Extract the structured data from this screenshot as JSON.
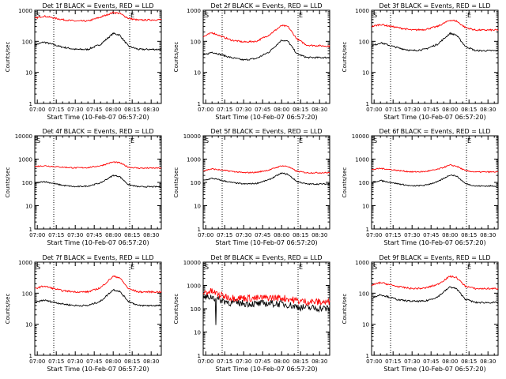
{
  "x_tick_labels": [
    "07:00",
    "07:15",
    "07:30",
    "07:45",
    "08:00",
    "08:15",
    "08:30"
  ],
  "y_tick_labels": [
    "1",
    "10",
    "100",
    "1000"
  ],
  "y_tick_labels_4dec": [
    "1",
    "10",
    "100",
    "1000",
    "10000"
  ],
  "dotted_line_times": [
    "07:13",
    "08:13"
  ],
  "colors": {
    "events": "#000000",
    "lld": "#ff0000"
  },
  "chart_data": [
    {
      "type": "line",
      "title": "Det 1f BLACK = Events, RED = LLD",
      "xlabel": "Start Time (10-Feb-07 06:57:20)",
      "ylabel": "Counts/sec",
      "yscale": "log",
      "ylim": [
        1,
        1000
      ],
      "xlim": [
        "06:58",
        "08:38"
      ],
      "markers": [
        "S",
        "E"
      ],
      "series": [
        {
          "name": "BLACK = Events",
          "x": [
            "06:58",
            "07:05",
            "07:20",
            "07:30",
            "07:40",
            "07:50",
            "08:00",
            "08:05",
            "08:12",
            "08:20",
            "08:38"
          ],
          "y": [
            75,
            95,
            65,
            55,
            55,
            80,
            180,
            160,
            70,
            55,
            55
          ]
        },
        {
          "name": "RED = LLD",
          "x": [
            "06:58",
            "07:05",
            "07:20",
            "07:30",
            "07:40",
            "07:50",
            "08:00",
            "08:05",
            "08:12",
            "08:20",
            "08:38"
          ],
          "y": [
            550,
            650,
            500,
            450,
            450,
            600,
            850,
            800,
            550,
            480,
            500
          ]
        }
      ]
    },
    {
      "type": "line",
      "title": "Det 2f BLACK = Events, RED = LLD",
      "xlabel": "Start Time (10-Feb-07 06:57:20)",
      "ylabel": "Counts/sec",
      "yscale": "log",
      "ylim": [
        1,
        1000
      ],
      "xlim": [
        "06:58",
        "08:38"
      ],
      "markers": [
        "S",
        "E"
      ],
      "series": [
        {
          "name": "BLACK = Events",
          "x": [
            "06:58",
            "07:05",
            "07:20",
            "07:30",
            "07:40",
            "07:50",
            "08:00",
            "08:05",
            "08:12",
            "08:20",
            "08:38"
          ],
          "y": [
            35,
            45,
            30,
            25,
            28,
            45,
            110,
            100,
            40,
            30,
            30
          ]
        },
        {
          "name": "RED = LLD",
          "x": [
            "06:58",
            "07:05",
            "07:20",
            "07:30",
            "07:40",
            "07:50",
            "08:00",
            "08:05",
            "08:12",
            "08:20",
            "08:38"
          ],
          "y": [
            140,
            190,
            110,
            95,
            100,
            160,
            320,
            300,
            120,
            75,
            70
          ]
        }
      ]
    },
    {
      "type": "line",
      "title": "Det 3f BLACK = Events, RED = LLD",
      "xlabel": "Start Time (10-Feb-07 06:57:20)",
      "ylabel": "Counts/sec",
      "yscale": "log",
      "ylim": [
        1,
        1000
      ],
      "xlim": [
        "06:58",
        "08:38"
      ],
      "markers": [
        "S",
        "E"
      ],
      "series": [
        {
          "name": "BLACK = Events",
          "x": [
            "06:58",
            "07:05",
            "07:20",
            "07:30",
            "07:40",
            "07:50",
            "08:00",
            "08:05",
            "08:12",
            "08:20",
            "08:38"
          ],
          "y": [
            70,
            90,
            60,
            50,
            55,
            80,
            180,
            160,
            70,
            50,
            50
          ]
        },
        {
          "name": "RED = LLD",
          "x": [
            "06:58",
            "07:05",
            "07:20",
            "07:30",
            "07:40",
            "07:50",
            "08:00",
            "08:05",
            "08:12",
            "08:20",
            "08:38"
          ],
          "y": [
            300,
            350,
            270,
            230,
            240,
            300,
            480,
            450,
            280,
            230,
            230
          ]
        }
      ]
    },
    {
      "type": "line",
      "title": "Det 4f BLACK = Events, RED = LLD",
      "xlabel": "Start Time (10-Feb-07 06:57:20)",
      "ylabel": "Counts/sec",
      "yscale": "log",
      "ylim": [
        1,
        10000
      ],
      "xlim": [
        "06:58",
        "08:38"
      ],
      "markers": [
        "S",
        "E"
      ],
      "series": [
        {
          "name": "BLACK = Events",
          "x": [
            "06:58",
            "07:05",
            "07:20",
            "07:30",
            "07:40",
            "07:50",
            "08:00",
            "08:05",
            "08:12",
            "08:20",
            "08:38"
          ],
          "y": [
            90,
            110,
            75,
            65,
            70,
            95,
            200,
            180,
            80,
            65,
            65
          ]
        },
        {
          "name": "RED = LLD",
          "x": [
            "06:58",
            "07:05",
            "07:20",
            "07:30",
            "07:40",
            "07:50",
            "08:00",
            "08:05",
            "08:12",
            "08:20",
            "08:38"
          ],
          "y": [
            480,
            520,
            450,
            420,
            430,
            520,
            750,
            700,
            450,
            410,
            410
          ]
        }
      ]
    },
    {
      "type": "line",
      "title": "Det 5f BLACK = Events, RED = LLD",
      "xlabel": "Start Time (10-Feb-07 06:57:20)",
      "ylabel": "Counts/sec",
      "yscale": "log",
      "ylim": [
        1,
        10000
      ],
      "xlim": [
        "06:58",
        "08:38"
      ],
      "markers": [
        "S",
        "E"
      ],
      "series": [
        {
          "name": "BLACK = Events",
          "x": [
            "06:58",
            "07:05",
            "07:20",
            "07:30",
            "07:40",
            "07:50",
            "08:00",
            "08:05",
            "08:12",
            "08:20",
            "08:38"
          ],
          "y": [
            120,
            150,
            100,
            85,
            90,
            130,
            250,
            220,
            110,
            85,
            85
          ]
        },
        {
          "name": "RED = LLD",
          "x": [
            "06:58",
            "07:05",
            "07:20",
            "07:30",
            "07:40",
            "07:50",
            "08:00",
            "08:05",
            "08:12",
            "08:20",
            "08:38"
          ],
          "y": [
            320,
            380,
            300,
            260,
            270,
            340,
            520,
            480,
            300,
            260,
            260
          ]
        }
      ]
    },
    {
      "type": "line",
      "title": "Det 6f BLACK = Events, RED = LLD",
      "xlabel": "Start Time (10-Feb-07 06:57:20)",
      "ylabel": "Counts/sec",
      "yscale": "log",
      "ylim": [
        1,
        10000
      ],
      "xlim": [
        "06:58",
        "08:38"
      ],
      "markers": [
        "S",
        "E"
      ],
      "series": [
        {
          "name": "BLACK = Events",
          "x": [
            "06:58",
            "07:05",
            "07:20",
            "07:30",
            "07:40",
            "07:50",
            "08:00",
            "08:05",
            "08:12",
            "08:20",
            "08:38"
          ],
          "y": [
            100,
            120,
            85,
            70,
            75,
            105,
            210,
            190,
            90,
            70,
            70
          ]
        },
        {
          "name": "RED = LLD",
          "x": [
            "06:58",
            "07:05",
            "07:20",
            "07:30",
            "07:40",
            "07:50",
            "08:00",
            "08:05",
            "08:12",
            "08:20",
            "08:38"
          ],
          "y": [
            350,
            400,
            320,
            280,
            290,
            360,
            550,
            500,
            320,
            280,
            280
          ]
        }
      ]
    },
    {
      "type": "line",
      "title": "Det 7f BLACK = Events, RED = LLD",
      "xlabel": "Start Time (10-Feb-07 06:57:20)",
      "ylabel": "Counts/sec",
      "yscale": "log",
      "ylim": [
        1,
        1000
      ],
      "xlim": [
        "06:58",
        "08:38"
      ],
      "markers": [
        "S",
        "E"
      ],
      "series": [
        {
          "name": "BLACK = Events",
          "x": [
            "06:58",
            "07:05",
            "07:20",
            "07:30",
            "07:40",
            "07:50",
            "08:00",
            "08:05",
            "08:12",
            "08:20",
            "08:38"
          ],
          "y": [
            50,
            60,
            45,
            40,
            40,
            55,
            130,
            115,
            55,
            40,
            40
          ]
        },
        {
          "name": "RED = LLD",
          "x": [
            "06:58",
            "07:05",
            "07:20",
            "07:30",
            "07:40",
            "07:50",
            "08:00",
            "08:05",
            "08:12",
            "08:20",
            "08:38"
          ],
          "y": [
            140,
            170,
            120,
            110,
            110,
            150,
            350,
            320,
            140,
            110,
            110
          ]
        }
      ]
    },
    {
      "type": "line",
      "title": "Det 8f BLACK = Events, RED = LLD",
      "xlabel": "Start Time (10-Feb-07 06:57:20)",
      "ylabel": "Counts/sec",
      "yscale": "log",
      "ylim": [
        1,
        10000
      ],
      "xlim": [
        "06:58",
        "08:38"
      ],
      "markers": [
        "S",
        "E"
      ],
      "series": [
        {
          "name": "BLACK = Events",
          "x": [
            "06:58",
            "07:05",
            "07:10",
            "07:20",
            "07:30",
            "07:40",
            "07:50",
            "08:00",
            "08:05",
            "08:12",
            "08:20",
            "08:38"
          ],
          "y": [
            300,
            320,
            250,
            180,
            170,
            160,
            170,
            160,
            150,
            120,
            110,
            100
          ]
        },
        {
          "name": "RED = LLD",
          "x": [
            "06:58",
            "07:05",
            "07:10",
            "07:20",
            "07:30",
            "07:40",
            "07:50",
            "08:00",
            "08:05",
            "08:12",
            "08:20",
            "08:38"
          ],
          "y": [
            500,
            550,
            400,
            300,
            290,
            280,
            300,
            290,
            270,
            220,
            200,
            190
          ]
        }
      ]
    },
    {
      "type": "line",
      "title": "Det 9f BLACK = Events, RED = LLD",
      "xlabel": "Start Time (10-Feb-07 06:57:20)",
      "ylabel": "Counts/sec",
      "yscale": "log",
      "ylim": [
        1,
        1000
      ],
      "xlim": [
        "06:58",
        "08:38"
      ],
      "markers": [
        "S",
        "E"
      ],
      "series": [
        {
          "name": "BLACK = Events",
          "x": [
            "06:58",
            "07:05",
            "07:20",
            "07:30",
            "07:40",
            "07:50",
            "08:00",
            "08:05",
            "08:12",
            "08:20",
            "08:38"
          ],
          "y": [
            70,
            90,
            60,
            55,
            55,
            75,
            160,
            140,
            65,
            50,
            50
          ]
        },
        {
          "name": "RED = LLD",
          "x": [
            "06:58",
            "07:05",
            "07:20",
            "07:30",
            "07:40",
            "07:50",
            "08:00",
            "08:05",
            "08:12",
            "08:20",
            "08:38"
          ],
          "y": [
            180,
            220,
            160,
            140,
            145,
            190,
            350,
            320,
            170,
            140,
            140
          ]
        }
      ]
    }
  ]
}
